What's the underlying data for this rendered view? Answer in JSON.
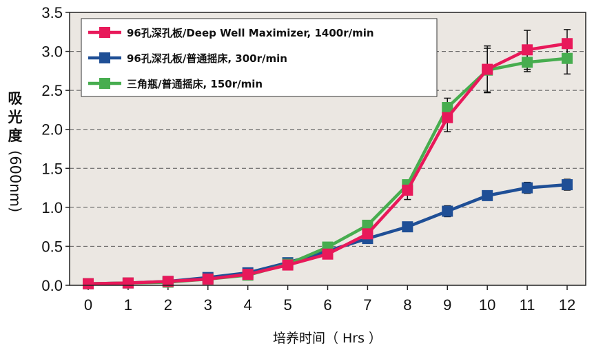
{
  "chart_data": {
    "type": "line",
    "title": "",
    "xlabel": "培养时间（ Hrs ）",
    "ylabel_chars": [
      "吸",
      "光",
      "度"
    ],
    "ylabel_suffix": "(600nm)",
    "x": [
      0,
      1,
      2,
      3,
      4,
      5,
      6,
      7,
      8,
      9,
      10,
      11,
      12
    ],
    "xlim": [
      0,
      12
    ],
    "ylim": [
      0,
      3.5
    ],
    "x_ticks": [
      "0",
      "1",
      "2",
      "3",
      "4",
      "5",
      "6",
      "7",
      "8",
      "9",
      "10",
      "11",
      "12"
    ],
    "y_ticks": [
      "0.0",
      "0.5",
      "1.0",
      "1.5",
      "2.0",
      "2.5",
      "3.0",
      "3.5"
    ],
    "grid": "horizontal dashed",
    "legend_position": "top-left",
    "plot_background": "#ebe7e2",
    "series": [
      {
        "name": "96孔深孔板/Deep Well Maximizer, 1400r/min",
        "color": "#e8195a",
        "values": [
          0.02,
          0.03,
          0.05,
          0.08,
          0.14,
          0.26,
          0.4,
          0.66,
          1.22,
          2.15,
          2.77,
          3.02,
          3.1
        ],
        "errors": [
          0,
          0,
          0,
          0,
          0,
          0,
          0,
          0,
          0.12,
          0.18,
          0.3,
          0.25,
          0.18
        ]
      },
      {
        "name": "96孔深孔板/普通摇床, 300r/min",
        "color": "#1f4f96",
        "values": [
          0.02,
          0.03,
          0.05,
          0.1,
          0.16,
          0.29,
          0.44,
          0.6,
          0.75,
          0.95,
          1.15,
          1.25,
          1.29
        ],
        "errors": [
          0,
          0,
          0,
          0,
          0,
          0,
          0,
          0,
          0.06,
          0.07,
          0.04,
          0.07,
          0.07
        ]
      },
      {
        "name": "三角瓶/普通摇床, 150r/min",
        "color": "#47ad4f",
        "values": [
          0.02,
          0.03,
          0.04,
          0.08,
          0.13,
          0.27,
          0.49,
          0.77,
          1.29,
          2.28,
          2.76,
          2.86,
          2.91
        ],
        "errors": [
          0,
          0,
          0,
          0,
          0,
          0,
          0,
          0,
          0,
          0.12,
          0.28,
          0.12,
          0.2
        ]
      }
    ]
  }
}
